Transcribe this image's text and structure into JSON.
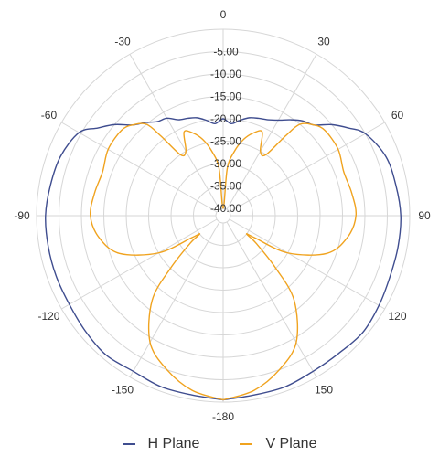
{
  "chart_data": {
    "type": "polar-line",
    "title": "",
    "angle_labels": [
      "0",
      "30",
      "60",
      "90",
      "120",
      "150",
      "-180",
      "-150",
      "-120",
      "-90",
      "-60",
      "-30"
    ],
    "angle_ticks": [
      0,
      30,
      60,
      90,
      120,
      150,
      180,
      -150,
      -120,
      -90,
      -60,
      -30
    ],
    "radial_labels": [
      "-40.00",
      "-35.00",
      "-30.00",
      "-25.00",
      "-20.00",
      "-15.00",
      "-10.00",
      "-5.00"
    ],
    "radial_ticks": [
      -40,
      -35,
      -30,
      -25,
      -20,
      -15,
      -10,
      -5
    ],
    "r_range": [
      -40,
      0
    ],
    "grid": true,
    "legend_position": "bottom",
    "series": [
      {
        "name": "H Plane",
        "color": "#3f4d8f",
        "angles": [
          -180,
          -170,
          -160,
          -150,
          -140,
          -130,
          -120,
          -110,
          -100,
          -90,
          -80,
          -70,
          -60,
          -55,
          -50,
          -45,
          -40,
          -35,
          -30,
          -25,
          -20,
          -15,
          -10,
          -5,
          0,
          5,
          10,
          15,
          20,
          25,
          30,
          35,
          40,
          45,
          50,
          55,
          60,
          70,
          80,
          90,
          100,
          110,
          120,
          130,
          140,
          150,
          160,
          170,
          180
        ],
        "values": [
          -0.5,
          -1,
          -1,
          -1.5,
          -1,
          -1.5,
          -2,
          -2,
          -2,
          -2,
          -2.5,
          -3,
          -4.5,
          -7.5,
          -10,
          -13,
          -14.5,
          -16,
          -16.5,
          -18,
          -18.5,
          -19,
          -20,
          -21,
          -20,
          -21,
          -20,
          -19,
          -18.5,
          -18,
          -17,
          -15.5,
          -14,
          -13,
          -10,
          -7.5,
          -5,
          -3,
          -2.5,
          -2,
          -2,
          -2,
          -1.5,
          -1,
          -1.5,
          -1.5,
          -1,
          -1,
          -0.5
        ]
      },
      {
        "name": "V Plane",
        "color": "#f0a31f",
        "angles": [
          -180,
          -170,
          -160,
          -150,
          -140,
          -135,
          -130,
          -128,
          -125,
          -120,
          -110,
          -100,
          -90,
          -80,
          -70,
          -60,
          -50,
          -45,
          -40,
          -38,
          -35,
          -30,
          -25,
          -20,
          -15,
          -10,
          -5,
          0,
          5,
          10,
          15,
          20,
          25,
          30,
          35,
          38,
          40,
          45,
          50,
          60,
          70,
          80,
          90,
          100,
          110,
          120,
          125,
          128,
          130,
          135,
          140,
          150,
          160,
          170,
          180
        ],
        "values": [
          -0.5,
          -2,
          -5,
          -9,
          -17,
          -25,
          -32,
          -35,
          -33,
          -25,
          -17,
          -13.5,
          -12,
          -12.5,
          -13,
          -12,
          -12,
          -13,
          -15,
          -19,
          -25,
          -25,
          -21,
          -22,
          -24,
          -27,
          -31,
          -40,
          -31,
          -27,
          -24,
          -22,
          -21,
          -25,
          -25,
          -19,
          -15,
          -13,
          -12,
          -12,
          -13,
          -12.5,
          -12,
          -13.5,
          -17,
          -25,
          -33,
          -35,
          -32,
          -25,
          -17,
          -9,
          -5,
          -2,
          -0.5
        ]
      }
    ]
  }
}
